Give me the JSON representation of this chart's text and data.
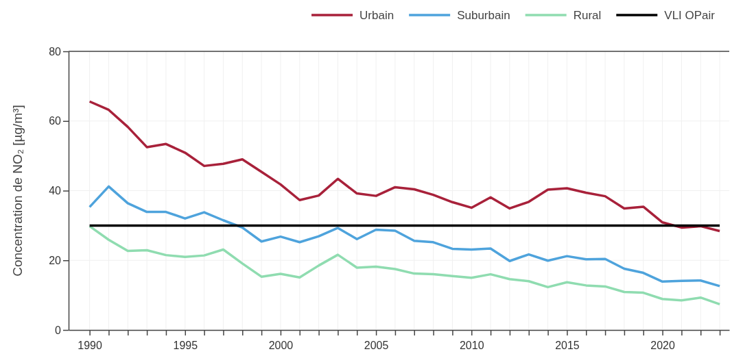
{
  "chart_data": {
    "type": "line",
    "ylabel": "Concentration de NO₂ [µg/m³]",
    "x": [
      1990,
      1991,
      1992,
      1993,
      1994,
      1995,
      1996,
      1997,
      1998,
      1999,
      2000,
      2001,
      2002,
      2003,
      2004,
      2005,
      2006,
      2007,
      2008,
      2009,
      2010,
      2011,
      2012,
      2013,
      2014,
      2015,
      2016,
      2017,
      2018,
      2019,
      2020,
      2021,
      2022,
      2023
    ],
    "series": [
      {
        "name": "Urbain",
        "color": "#a8213a",
        "values": [
          65.6,
          63.2,
          58.3,
          52.5,
          53.4,
          50.9,
          47.1,
          47.7,
          49.0,
          45.4,
          41.8,
          37.3,
          38.6,
          43.4,
          39.2,
          38.5,
          41.0,
          40.4,
          38.8,
          36.7,
          35.1,
          38.1,
          34.9,
          36.8,
          40.3,
          40.7,
          39.4,
          38.4,
          34.9,
          35.4,
          30.9,
          29.4,
          29.8,
          28.4
        ]
      },
      {
        "name": "Suburbain",
        "color": "#4ea3dc",
        "values": [
          35.3,
          41.2,
          36.4,
          33.9,
          33.9,
          32.0,
          33.8,
          31.5,
          29.4,
          25.4,
          26.8,
          25.2,
          26.9,
          29.3,
          26.1,
          28.8,
          28.5,
          25.6,
          25.2,
          23.3,
          23.1,
          23.4,
          19.8,
          21.7,
          19.9,
          21.2,
          20.3,
          20.4,
          17.6,
          16.4,
          13.9,
          14.1,
          14.2,
          12.6
        ]
      },
      {
        "name": "Rural",
        "color": "#8fdcb0",
        "values": [
          29.8,
          25.9,
          22.7,
          22.9,
          21.5,
          21.0,
          21.4,
          23.1,
          19.1,
          15.3,
          16.1,
          15.1,
          18.5,
          21.6,
          17.9,
          18.2,
          17.5,
          16.2,
          16.0,
          15.5,
          15.0,
          16.0,
          14.6,
          14.0,
          12.3,
          13.7,
          12.8,
          12.5,
          10.9,
          10.7,
          8.9,
          8.5,
          9.3,
          7.4
        ]
      },
      {
        "name": "VLI OPair",
        "color": "#000000",
        "values": [
          30,
          30,
          30,
          30,
          30,
          30,
          30,
          30,
          30,
          30,
          30,
          30,
          30,
          30,
          30,
          30,
          30,
          30,
          30,
          30,
          30,
          30,
          30,
          30,
          30,
          30,
          30,
          30,
          30,
          30,
          30,
          30,
          30,
          30
        ]
      }
    ],
    "xlim": [
      1988.9,
      2023.5
    ],
    "xticks": [
      1990,
      {
        "value": 1991,
        "label": null
      },
      {
        "value": 1992,
        "label": null
      },
      {
        "value": 1993,
        "label": null
      },
      {
        "value": 1994,
        "label": null
      },
      1995,
      {
        "value": 1996,
        "label": null
      },
      {
        "value": 1997,
        "label": null
      },
      {
        "value": 1998,
        "label": null
      },
      {
        "value": 1999,
        "label": null
      },
      2000,
      {
        "value": 2001,
        "label": null
      },
      {
        "value": 2002,
        "label": null
      },
      {
        "value": 2003,
        "label": null
      },
      {
        "value": 2004,
        "label": null
      },
      2005,
      {
        "value": 2006,
        "label": null
      },
      {
        "value": 2007,
        "label": null
      },
      {
        "value": 2008,
        "label": null
      },
      {
        "value": 2009,
        "label": null
      },
      2010,
      {
        "value": 2011,
        "label": null
      },
      {
        "value": 2012,
        "label": null
      },
      {
        "value": 2013,
        "label": null
      },
      {
        "value": 2014,
        "label": null
      },
      2015,
      {
        "value": 2016,
        "label": null
      },
      {
        "value": 2017,
        "label": null
      },
      {
        "value": 2018,
        "label": null
      },
      {
        "value": 2019,
        "label": null
      },
      2020,
      {
        "value": 2021,
        "label": null
      },
      {
        "value": 2022,
        "label": null
      },
      {
        "value": 2023,
        "label": null
      }
    ],
    "ylim": [
      0,
      80
    ],
    "yticks": [
      0,
      20,
      40,
      60,
      80
    ],
    "grid": true,
    "legend": "top right",
    "marker": "none",
    "line_style": "solid"
  }
}
